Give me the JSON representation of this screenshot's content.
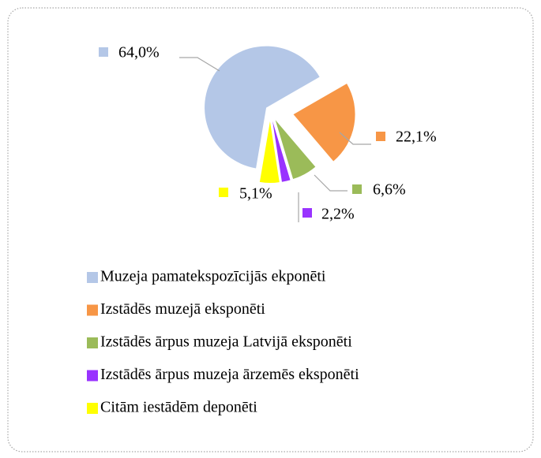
{
  "chart_data": {
    "type": "pie",
    "categories": [
      "Muzeja pamatekspozīcijās ekponēti",
      "Izstādēs muzejā eksponēti",
      "Izstādēs ārpus muzeja Latvijā eksponēti",
      "Izstādēs ārpus muzeja ārzemēs eksponēti",
      "Citām iestādēm deponēti"
    ],
    "values": [
      64.0,
      22.1,
      6.6,
      2.2,
      5.1
    ],
    "value_labels": [
      "64,0%",
      "22,1%",
      "6,6%",
      "2,2%",
      "5,1%"
    ],
    "colors": [
      "#b4c7e7",
      "#f79646",
      "#9bbb59",
      "#9933ff",
      "#ffff00"
    ],
    "legend": "bottom"
  }
}
